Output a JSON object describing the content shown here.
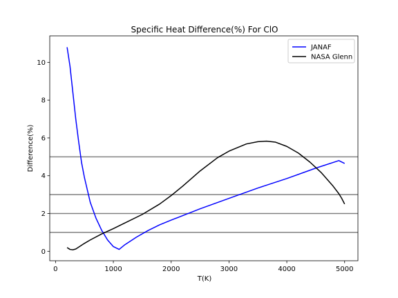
{
  "chart_data": {
    "type": "line",
    "title": "Specific Heat Difference(%) For ClO",
    "xlabel": "T(K)",
    "ylabel": "Difference(%)",
    "xlim": [
      -100,
      5230
    ],
    "ylim": [
      -0.5,
      11.4
    ],
    "xticks": [
      0,
      1000,
      2000,
      3000,
      4000,
      5000
    ],
    "yticks": [
      0,
      2,
      4,
      6,
      8,
      10
    ],
    "legend_position": "top-right",
    "grid": false,
    "reference_lines": [
      1,
      2,
      3,
      5
    ],
    "series": [
      {
        "name": "JANAF",
        "color": "#0000ff",
        "x": [
          200,
          250,
          300,
          350,
          400,
          450,
          500,
          600,
          700,
          800,
          900,
          1000,
          1100,
          1200,
          1400,
          1600,
          1800,
          2000,
          2500,
          3000,
          3500,
          4000,
          4500,
          4900,
          5000
        ],
        "y": [
          10.8,
          9.8,
          8.4,
          7.0,
          5.8,
          4.7,
          3.9,
          2.6,
          1.75,
          1.1,
          0.6,
          0.25,
          0.1,
          0.35,
          0.75,
          1.1,
          1.4,
          1.65,
          2.25,
          2.8,
          3.35,
          3.85,
          4.4,
          4.8,
          4.65
        ]
      },
      {
        "name": "NASA Glenn",
        "color": "#000000",
        "x": [
          200,
          250,
          300,
          350,
          400,
          500,
          600,
          800,
          1000,
          1200,
          1500,
          1800,
          2000,
          2200,
          2500,
          2800,
          3000,
          3300,
          3500,
          3650,
          3800,
          4000,
          4200,
          4400,
          4600,
          4800,
          4900,
          4950,
          5000
        ],
        "y": [
          0.2,
          0.1,
          0.08,
          0.12,
          0.22,
          0.42,
          0.6,
          0.92,
          1.2,
          1.5,
          1.95,
          2.5,
          2.95,
          3.45,
          4.25,
          4.95,
          5.3,
          5.68,
          5.8,
          5.83,
          5.78,
          5.55,
          5.2,
          4.72,
          4.15,
          3.45,
          3.05,
          2.8,
          2.5
        ]
      }
    ]
  }
}
